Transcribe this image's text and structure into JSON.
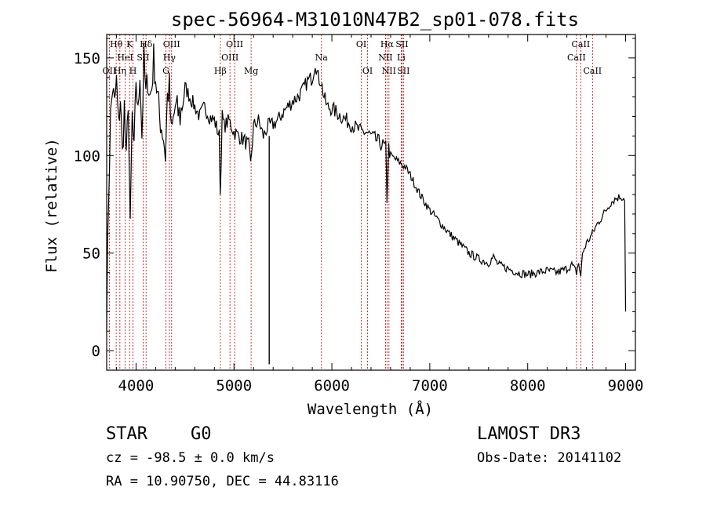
{
  "chart_data": {
    "type": "line",
    "title": "spec-56964-M31010N47B2_sp01-078.fits",
    "xlabel": "Wavelength (Å)",
    "ylabel": "Flux (relative)",
    "xlim": [
      3700,
      9100
    ],
    "ylim": [
      -10,
      162
    ],
    "xticks": [
      4000,
      5000,
      6000,
      7000,
      8000,
      9000
    ],
    "yticks": [
      0,
      50,
      100,
      150
    ],
    "grid": false,
    "series": [
      {
        "color": "#000000",
        "x": [
          3700,
          3720,
          3740,
          3760,
          3780,
          3800,
          3820,
          3840,
          3860,
          3880,
          3900,
          3920,
          3940,
          3960,
          3980,
          4000,
          4020,
          4040,
          4060,
          4080,
          4100,
          4120,
          4140,
          4160,
          4180,
          4200,
          4240,
          4280,
          4300,
          4320,
          4340,
          4360,
          4400,
          4450,
          4500,
          4550,
          4600,
          4650,
          4700,
          4750,
          4800,
          4850,
          4860,
          4880,
          4900,
          4950,
          5000,
          5050,
          5100,
          5150,
          5170,
          5200,
          5250,
          5300,
          5350,
          5400,
          5450,
          5500,
          5550,
          5600,
          5650,
          5700,
          5750,
          5800,
          5830,
          5860,
          5890,
          5920,
          5950,
          6000,
          6050,
          6100,
          6150,
          6200,
          6250,
          6300,
          6350,
          6400,
          6450,
          6500,
          6550,
          6563,
          6580,
          6600,
          6650,
          6700,
          6750,
          6800,
          6850,
          6900,
          6950,
          7000,
          7100,
          7200,
          7300,
          7400,
          7500,
          7600,
          7650,
          7700,
          7800,
          7900,
          8000,
          8100,
          8200,
          8300,
          8400,
          8450,
          8498,
          8520,
          8542,
          8560,
          8600,
          8662,
          8700,
          8750,
          8800,
          8850,
          8900,
          8950,
          8990,
          9000
        ],
        "y": [
          20,
          80,
          120,
          135,
          125,
          138,
          115,
          130,
          100,
          125,
          95,
          130,
          60,
          120,
          100,
          140,
          120,
          145,
          110,
          150,
          130,
          140,
          130,
          135,
          150,
          140,
          120,
          110,
          100,
          130,
          135,
          110,
          125,
          120,
          135,
          130,
          125,
          120,
          125,
          120,
          118,
          110,
          80,
          120,
          115,
          118,
          112,
          110,
          108,
          105,
          95,
          115,
          118,
          110,
          115,
          116,
          118,
          122,
          125,
          128,
          130,
          133,
          138,
          140,
          148,
          140,
          138,
          130,
          125,
          124,
          122,
          120,
          118,
          116,
          114,
          112,
          112,
          110,
          108,
          106,
          104,
          78,
          104,
          100,
          98,
          96,
          94,
          90,
          85,
          80,
          76,
          72,
          66,
          60,
          55,
          50,
          47,
          45,
          48,
          44,
          42,
          40,
          39,
          40,
          41,
          40,
          42,
          44,
          40,
          45,
          38,
          50,
          55,
          60,
          64,
          68,
          72,
          76,
          78,
          79,
          78,
          20
        ]
      }
    ],
    "line_markers": [
      {
        "label": "Hθ",
        "x": 3797,
        "row": 0
      },
      {
        "label": "OII",
        "x": 3727,
        "row": 2
      },
      {
        "label": "Hη",
        "x": 3835,
        "row": 2
      },
      {
        "label": "HeI",
        "x": 3889,
        "row": 1
      },
      {
        "label": "K",
        "x": 3934,
        "row": 0
      },
      {
        "label": "H",
        "x": 3969,
        "row": 2
      },
      {
        "label": "SII",
        "x": 4072,
        "row": 1
      },
      {
        "label": "Hδ",
        "x": 4102,
        "row": 0
      },
      {
        "label": "OIII",
        "x": 4363,
        "row": 0
      },
      {
        "label": "Hγ",
        "x": 4340,
        "row": 1
      },
      {
        "label": "G",
        "x": 4305,
        "row": 2
      },
      {
        "label": "Hβ",
        "x": 4861,
        "row": 2
      },
      {
        "label": "OIII",
        "x": 5007,
        "row": 0
      },
      {
        "label": "OIII",
        "x": 4959,
        "row": 1
      },
      {
        "label": "Mg",
        "x": 5175,
        "row": 2
      },
      {
        "label": "Na",
        "x": 5893,
        "row": 1
      },
      {
        "label": "OI",
        "x": 6300,
        "row": 0
      },
      {
        "label": "OI",
        "x": 6364,
        "row": 2
      },
      {
        "label": "Hα",
        "x": 6563,
        "row": 0
      },
      {
        "label": "NII",
        "x": 6548,
        "row": 1
      },
      {
        "label": "NII",
        "x": 6583,
        "row": 2
      },
      {
        "label": "SII",
        "x": 6716,
        "row": 0
      },
      {
        "label": "Li",
        "x": 6708,
        "row": 1
      },
      {
        "label": "SII",
        "x": 6731,
        "row": 2
      },
      {
        "label": "CaII",
        "x": 8542,
        "row": 0
      },
      {
        "label": "CaII",
        "x": 8498,
        "row": 1
      },
      {
        "label": "CaII",
        "x": 8662,
        "row": 2
      }
    ]
  },
  "info": {
    "object_class": "STAR",
    "subclass": "G0",
    "survey": "LAMOST DR3",
    "cz": "cz = -98.5 ± 0.0 km/s",
    "obs_date": "Obs-Date: 20141102",
    "coords": "RA =  10.90750, DEC =  44.83116"
  },
  "colors": {
    "marker_line": "#cc0000",
    "spectrum": "#000000"
  }
}
